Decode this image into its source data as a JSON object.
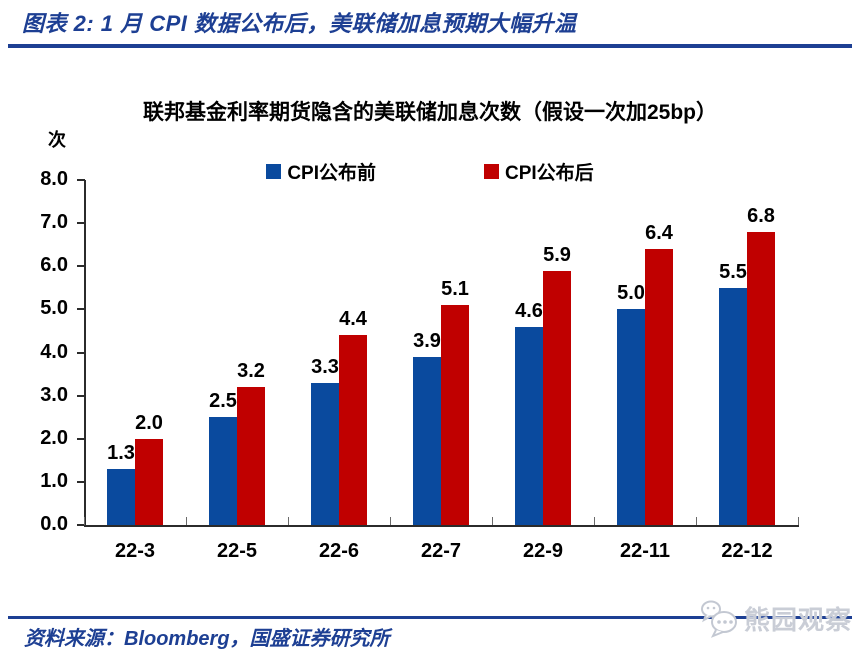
{
  "header": {
    "title": "图表 2: 1 月 CPI 数据公布后，美联储加息预期大幅升温"
  },
  "footer": {
    "source": "资料来源：Bloomberg，国盛证券研究所",
    "watermark": "熊园观察"
  },
  "colors": {
    "accent_navy": "#1d3f93",
    "bar_blue": "#0a4a9e",
    "bar_red": "#c00000",
    "axis": "#2b2b2b",
    "watermark_gray": "#c9cdd6"
  },
  "chart_data": {
    "type": "bar",
    "title": "联邦基金利率期货隐含的美联储加息次数（假设一次加25bp）",
    "unit_label": "次",
    "categories": [
      "22-3",
      "22-5",
      "22-6",
      "22-7",
      "22-9",
      "22-11",
      "22-12"
    ],
    "series": [
      {
        "name": "CPI公布前",
        "color": "#0a4a9e",
        "values": [
          1.3,
          2.5,
          3.3,
          3.9,
          4.6,
          5.0,
          5.5
        ]
      },
      {
        "name": "CPI公布后",
        "color": "#c00000",
        "values": [
          2.0,
          3.2,
          4.4,
          5.1,
          5.9,
          6.4,
          6.8
        ]
      }
    ],
    "ylim": [
      0.0,
      8.0
    ],
    "ytick_step": 1.0,
    "ytick_labels": [
      "0.0",
      "1.0",
      "2.0",
      "3.0",
      "4.0",
      "5.0",
      "6.0",
      "7.0",
      "8.0"
    ],
    "value_label_decimals": 1,
    "grid": false,
    "legend_position": "top-center"
  }
}
